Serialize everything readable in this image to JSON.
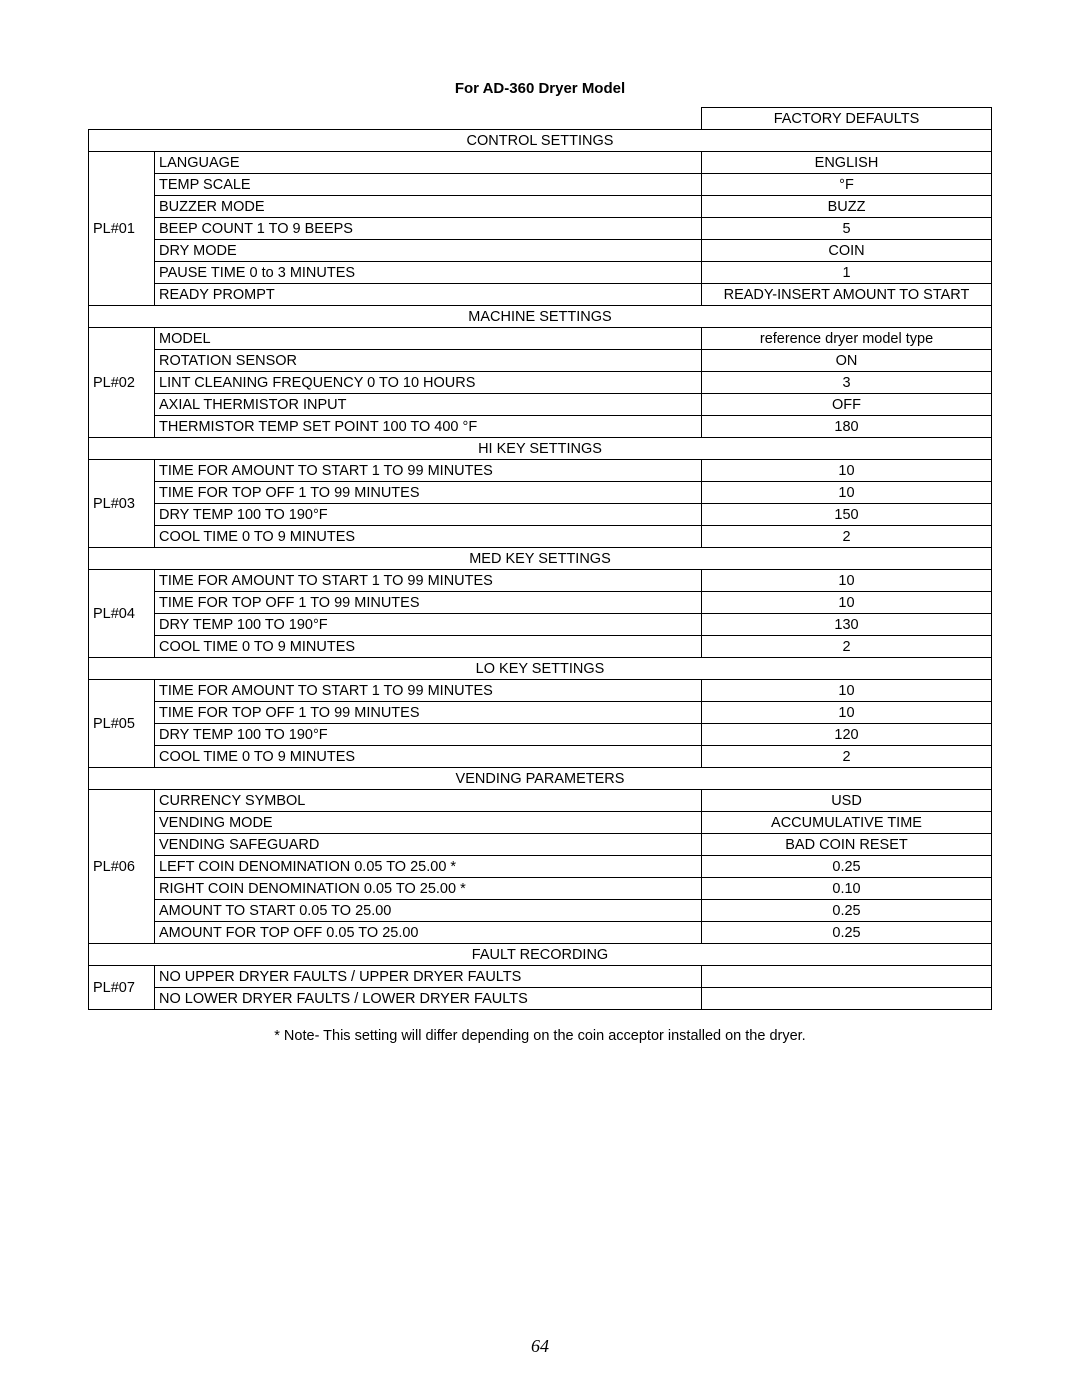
{
  "title": "For AD-360 Dryer Model",
  "header_default": "FACTORY DEFAULTS",
  "note": "* Note- This setting will differ depending on the coin acceptor installed on the dryer.",
  "page_number": "64",
  "sections": [
    {
      "pl": "PL#01",
      "name": "CONTROL SETTINGS",
      "rows": [
        {
          "setting": "LANGUAGE",
          "default": "ENGLISH"
        },
        {
          "setting": "TEMP SCALE",
          "default": "°F"
        },
        {
          "setting": "BUZZER MODE",
          "default": "BUZZ"
        },
        {
          "setting": "BEEP COUNT 1 TO 9 BEEPS",
          "default": "5"
        },
        {
          "setting": "DRY MODE",
          "default": "COIN"
        },
        {
          "setting": "PAUSE TIME 0 to 3 MINUTES",
          "default": "1"
        },
        {
          "setting": "READY PROMPT",
          "default": "READY-INSERT AMOUNT TO START"
        }
      ]
    },
    {
      "pl": "PL#02",
      "name": "MACHINE SETTINGS",
      "rows": [
        {
          "setting": "MODEL",
          "default": "reference dryer model type"
        },
        {
          "setting": "ROTATION SENSOR",
          "default": "ON"
        },
        {
          "setting": "LINT CLEANING FREQUENCY 0 TO 10 HOURS",
          "default": "3"
        },
        {
          "setting": "AXIAL THERMISTOR INPUT",
          "default": "OFF"
        },
        {
          "setting": "THERMISTOR TEMP SET POINT 100 TO 400 °F",
          "default": "180"
        }
      ]
    },
    {
      "pl": "PL#03",
      "name": "HI KEY SETTINGS",
      "rows": [
        {
          "setting": "TIME FOR AMOUNT TO START 1 TO 99 MINUTES",
          "default": "10"
        },
        {
          "setting": "TIME FOR TOP OFF 1 TO 99 MINUTES",
          "default": "10"
        },
        {
          "setting": "DRY TEMP 100 TO 190°F",
          "default": "150"
        },
        {
          "setting": "COOL TIME 0 TO 9 MINUTES",
          "default": "2"
        }
      ]
    },
    {
      "pl": "PL#04",
      "name": "MED KEY SETTINGS",
      "rows": [
        {
          "setting": "TIME FOR AMOUNT TO START 1 TO 99 MINUTES",
          "default": "10"
        },
        {
          "setting": "TIME FOR TOP OFF 1 TO 99 MINUTES",
          "default": "10"
        },
        {
          "setting": "DRY TEMP 100 TO 190°F",
          "default": "130"
        },
        {
          "setting": "COOL TIME 0 TO 9 MINUTES",
          "default": "2"
        }
      ]
    },
    {
      "pl": "PL#05",
      "name": "LO KEY SETTINGS",
      "rows": [
        {
          "setting": "TIME FOR AMOUNT TO START 1 TO 99 MINUTES",
          "default": "10"
        },
        {
          "setting": "TIME FOR TOP OFF 1 TO 99 MINUTES",
          "default": "10"
        },
        {
          "setting": "DRY TEMP 100 TO 190°F",
          "default": "120"
        },
        {
          "setting": "COOL TIME 0 TO 9 MINUTES",
          "default": "2"
        }
      ]
    },
    {
      "pl": "PL#06",
      "name": "VENDING PARAMETERS",
      "rows": [
        {
          "setting": "CURRENCY SYMBOL",
          "default": "USD"
        },
        {
          "setting": "VENDING MODE",
          "default": "ACCUMULATIVE TIME"
        },
        {
          "setting": "VENDING SAFEGUARD",
          "default": "BAD COIN RESET"
        },
        {
          "setting": "LEFT COIN DENOMINATION 0.05 TO 25.00  *",
          "default": "0.25"
        },
        {
          "setting": "RIGHT COIN DENOMINATION 0.05 TO 25.00  *",
          "default": "0.10"
        },
        {
          "setting": "AMOUNT TO START 0.05 TO 25.00",
          "default": "0.25"
        },
        {
          "setting": "AMOUNT FOR TOP OFF 0.05 TO 25.00",
          "default": "0.25"
        }
      ]
    },
    {
      "pl": "PL#07",
      "name": "FAULT RECORDING",
      "rows": [
        {
          "setting": "NO UPPER DRYER FAULTS / UPPER DRYER FAULTS",
          "default": ""
        },
        {
          "setting": "NO LOWER DRYER FAULTS / LOWER DRYER FAULTS",
          "default": ""
        }
      ]
    }
  ]
}
